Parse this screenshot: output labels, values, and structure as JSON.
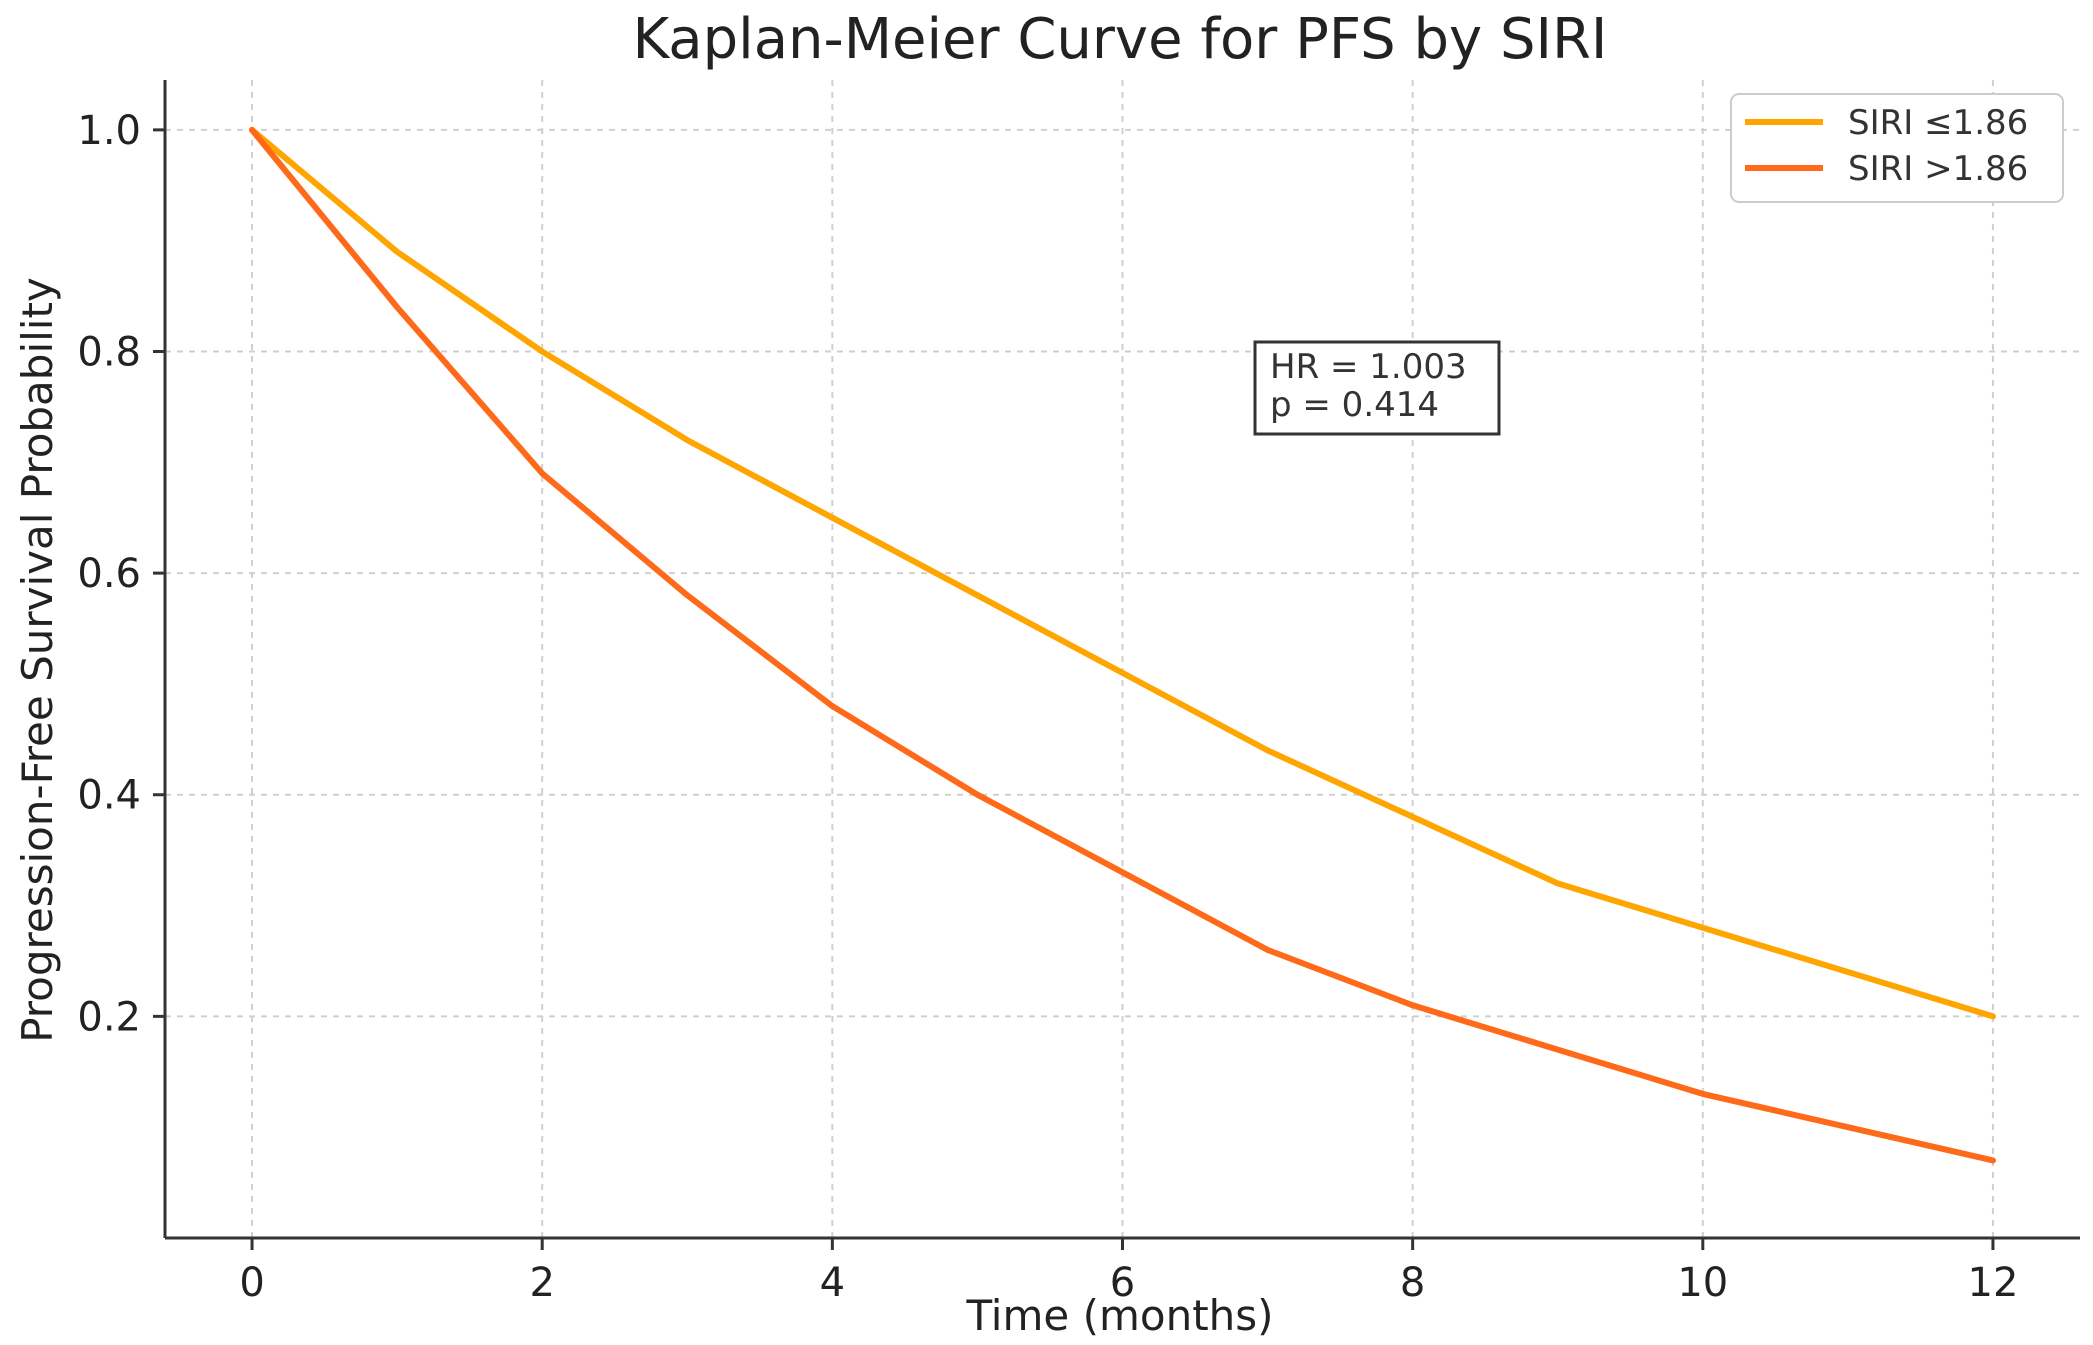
{
  "chart_data": {
    "type": "line",
    "title": "Kaplan-Meier Curve for PFS by SIRI",
    "xlabel": "Time (months)",
    "ylabel": "Progression-Free Survival Probability",
    "xlim": [
      -0.6,
      12.6
    ],
    "ylim": [
      0.0,
      1.045
    ],
    "xticks": [
      0,
      2,
      4,
      6,
      8,
      10,
      12
    ],
    "xtick_labels": [
      "0",
      "2",
      "4",
      "6",
      "8",
      "10",
      "12"
    ],
    "yticks": [
      0.2,
      0.4,
      0.6,
      0.8,
      1.0
    ],
    "ytick_labels": [
      "0.2",
      "0.4",
      "0.6",
      "0.8",
      "1.0"
    ],
    "grid": true,
    "legend_position": "top-right",
    "series": [
      {
        "name": "SIRI ≤1.86",
        "color": "#FFA500",
        "x": [
          0,
          1,
          2,
          3,
          4,
          5,
          6,
          7,
          8,
          9,
          10,
          11,
          12
        ],
        "y": [
          1.0,
          0.89,
          0.8,
          0.72,
          0.65,
          0.58,
          0.51,
          0.44,
          0.38,
          0.32,
          0.28,
          0.24,
          0.2
        ]
      },
      {
        "name": "SIRI >1.86",
        "color": "#FF6A1A",
        "x": [
          0,
          1,
          2,
          3,
          4,
          5,
          6,
          7,
          8,
          9,
          10,
          11,
          12
        ],
        "y": [
          1.0,
          0.84,
          0.69,
          0.58,
          0.48,
          0.4,
          0.33,
          0.26,
          0.21,
          0.17,
          0.13,
          0.1,
          0.07
        ]
      }
    ],
    "annotation": {
      "lines": [
        "HR = 1.003",
        "p = 0.414"
      ],
      "anchor_x": 7,
      "anchor_y": 0.79
    }
  }
}
